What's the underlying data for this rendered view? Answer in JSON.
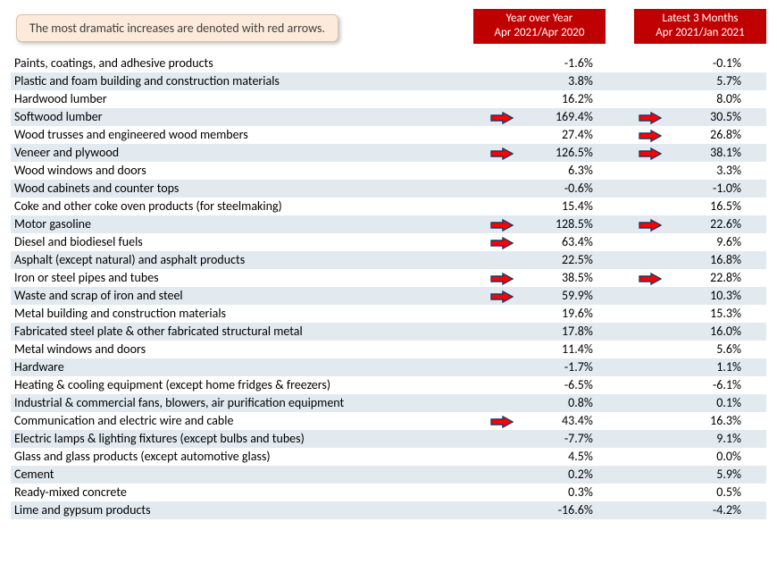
{
  "note": "The most dramatic increases are denoted with red arrows.",
  "columns": {
    "yoy": {
      "line1": "Year over Year",
      "line2": "Apr 2021/Apr 2020"
    },
    "l3m": {
      "line1": "Latest 3 Months",
      "line2": "Apr 2021/Jan 2021"
    }
  },
  "colors": {
    "header_bg": "#c00000",
    "header_text": "#ffffff",
    "row_alt_bg": "#e2eaf0",
    "note_bg": "#fdeada",
    "arrow_fill": "#ff0000",
    "arrow_stroke": "#1f3864"
  },
  "rows": [
    {
      "label": "Paints, coatings, and adhesive products",
      "yoy": "-1.6%",
      "l3m": "-0.1%",
      "ay": false,
      "a3": false
    },
    {
      "label": "Plastic and foam building and construction materials",
      "yoy": "3.8%",
      "l3m": "5.7%",
      "ay": false,
      "a3": false
    },
    {
      "label": "Hardwood lumber",
      "yoy": "16.2%",
      "l3m": "8.0%",
      "ay": false,
      "a3": false
    },
    {
      "label": "Softwood lumber",
      "yoy": "169.4%",
      "l3m": "30.5%",
      "ay": true,
      "a3": true
    },
    {
      "label": "Wood trusses and engineered wood members",
      "yoy": "27.4%",
      "l3m": "26.8%",
      "ay": false,
      "a3": true
    },
    {
      "label": "Veneer and plywood",
      "yoy": "126.5%",
      "l3m": "38.1%",
      "ay": true,
      "a3": true
    },
    {
      "label": "Wood windows and doors",
      "yoy": "6.3%",
      "l3m": "3.3%",
      "ay": false,
      "a3": false
    },
    {
      "label": "Wood cabinets and counter tops",
      "yoy": "-0.6%",
      "l3m": "-1.0%",
      "ay": false,
      "a3": false
    },
    {
      "label": "Coke and other coke oven products (for steelmaking)",
      "yoy": "15.4%",
      "l3m": "16.5%",
      "ay": false,
      "a3": false
    },
    {
      "label": "Motor gasoline",
      "yoy": "128.5%",
      "l3m": "22.6%",
      "ay": true,
      "a3": true
    },
    {
      "label": "Diesel and biodiesel fuels",
      "yoy": "63.4%",
      "l3m": "9.6%",
      "ay": true,
      "a3": false
    },
    {
      "label": "Asphalt (except natural) and asphalt products",
      "yoy": "22.5%",
      "l3m": "16.8%",
      "ay": false,
      "a3": false
    },
    {
      "label": "Iron or steel pipes and tubes",
      "yoy": "38.5%",
      "l3m": "22.8%",
      "ay": true,
      "a3": true
    },
    {
      "label": "Waste and scrap of iron and steel",
      "yoy": "59.9%",
      "l3m": "10.3%",
      "ay": true,
      "a3": false
    },
    {
      "label": "Metal building and construction materials",
      "yoy": "19.6%",
      "l3m": "15.3%",
      "ay": false,
      "a3": false
    },
    {
      "label": "Fabricated steel plate & other fabricated structural metal",
      "yoy": "17.8%",
      "l3m": "16.0%",
      "ay": false,
      "a3": false
    },
    {
      "label": "Metal windows and doors",
      "yoy": "11.4%",
      "l3m": "5.6%",
      "ay": false,
      "a3": false
    },
    {
      "label": "Hardware",
      "yoy": "-1.7%",
      "l3m": "1.1%",
      "ay": false,
      "a3": false
    },
    {
      "label": "Heating & cooling equipment (except home fridges & freezers)",
      "yoy": "-6.5%",
      "l3m": "-6.1%",
      "ay": false,
      "a3": false
    },
    {
      "label": "Industrial & commercial fans, blowers, air purification equipment",
      "yoy": "0.8%",
      "l3m": "0.1%",
      "ay": false,
      "a3": false
    },
    {
      "label": "Communication and electric wire and cable",
      "yoy": "43.4%",
      "l3m": "16.3%",
      "ay": true,
      "a3": false
    },
    {
      "label": "Electric lamps & lighting fixtures (except bulbs and tubes)",
      "yoy": "-7.7%",
      "l3m": "9.1%",
      "ay": false,
      "a3": false
    },
    {
      "label": "Glass and glass products (except automotive glass)",
      "yoy": "4.5%",
      "l3m": "0.0%",
      "ay": false,
      "a3": false
    },
    {
      "label": "Cement",
      "yoy": "0.2%",
      "l3m": "5.9%",
      "ay": false,
      "a3": false
    },
    {
      "label": "Ready-mixed concrete",
      "yoy": "0.3%",
      "l3m": "0.5%",
      "ay": false,
      "a3": false
    },
    {
      "label": "Lime and gypsum products",
      "yoy": "-16.6%",
      "l3m": "-4.2%",
      "ay": false,
      "a3": false
    }
  ]
}
